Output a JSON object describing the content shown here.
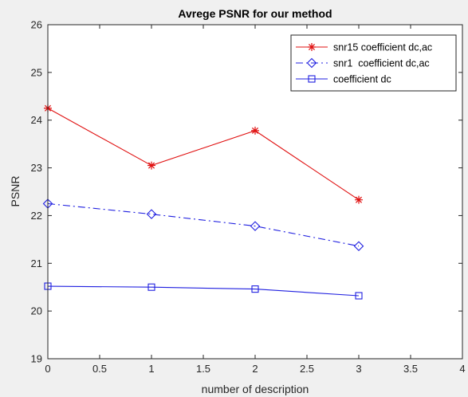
{
  "chart_data": {
    "type": "line",
    "title": "Avrege PSNR for our method",
    "xlabel": "number of description",
    "ylabel": "PSNR",
    "xlim": [
      0,
      4
    ],
    "ylim": [
      19,
      26
    ],
    "xticks": [
      "0",
      "0.5",
      "1",
      "1.5",
      "2",
      "2.5",
      "3",
      "3.5",
      "4"
    ],
    "yticks": [
      "19",
      "20",
      "21",
      "22",
      "23",
      "24",
      "25",
      "26"
    ],
    "grid": false,
    "legend_position": "top-right",
    "x": [
      0,
      1,
      2,
      3
    ],
    "series": [
      {
        "name": "snr15 coefficient dc,ac",
        "values": [
          24.25,
          23.05,
          23.78,
          22.33
        ],
        "color": "#e01010",
        "line_style": "solid",
        "marker": "asterisk"
      },
      {
        "name": "snr1  coefficient dc,ac",
        "values": [
          22.25,
          22.03,
          21.78,
          21.36
        ],
        "color": "#1f1fe0",
        "line_style": "dashdot",
        "marker": "diamond"
      },
      {
        "name": "coefficient dc",
        "values": [
          20.52,
          20.5,
          20.46,
          20.32
        ],
        "color": "#1f1fe0",
        "line_style": "solid",
        "marker": "square"
      }
    ]
  }
}
